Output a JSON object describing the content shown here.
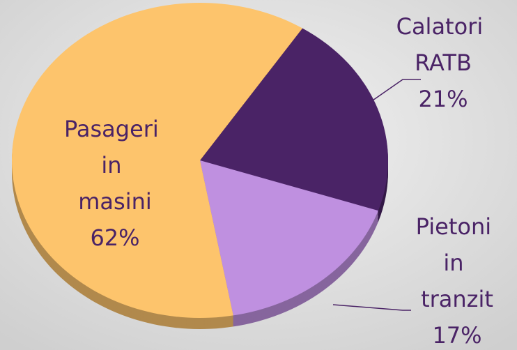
{
  "chart_data": {
    "type": "pie",
    "categories": [
      "Calatori RATB",
      "Pietoni in tranzit",
      "Pasageri in masini"
    ],
    "values": [
      21,
      17,
      62
    ],
    "value_labels": [
      "21%",
      "17%",
      "62%"
    ],
    "colors": [
      "#4a2366",
      "#bf90e0",
      "#fdc46c"
    ]
  }
}
